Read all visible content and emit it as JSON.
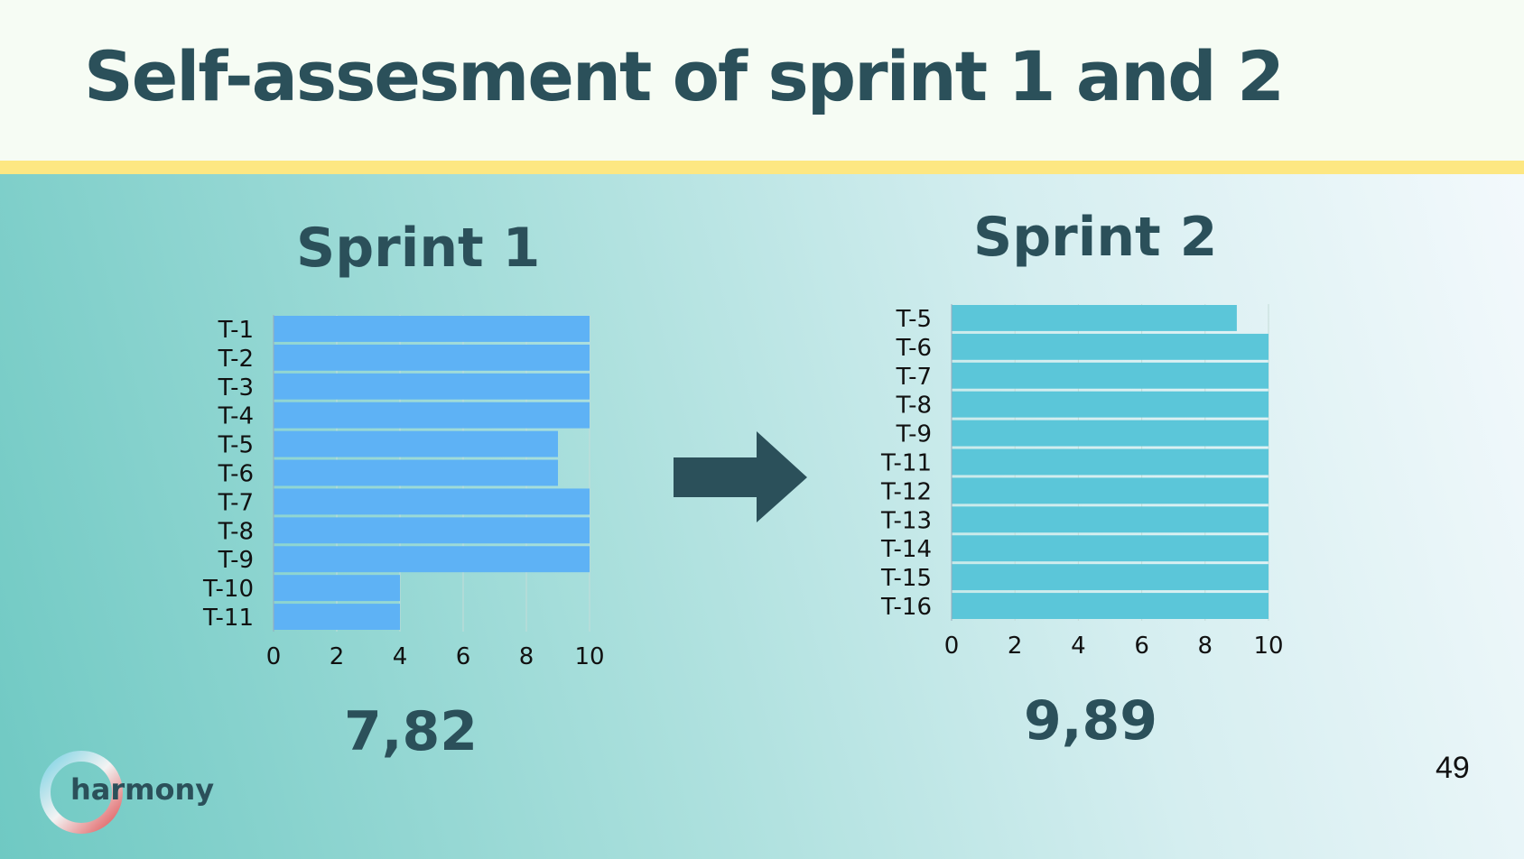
{
  "slide": {
    "title": "Self-assesment of sprint 1 and 2",
    "page_number": "49",
    "logo_text": "harmony",
    "arrow_icon": "right-arrow-icon",
    "colors": {
      "title": "#2b505a",
      "stripe": "#fde782",
      "sprint1_bars": "#5eb2f5",
      "sprint2_bars": "#5bc6d9"
    }
  },
  "chart_data": [
    {
      "type": "bar",
      "orientation": "horizontal",
      "title": "Sprint 1",
      "categories": [
        "T-1",
        "T-2",
        "T-3",
        "T-4",
        "T-5",
        "T-6",
        "T-7",
        "T-8",
        "T-9",
        "T-10",
        "T-11"
      ],
      "values": [
        10,
        10,
        10,
        10,
        9,
        9,
        10,
        10,
        10,
        4,
        4
      ],
      "xlim": [
        0,
        10
      ],
      "xticks": [
        "0",
        "2",
        "4",
        "6",
        "8",
        "10"
      ],
      "grid": true,
      "score": "7,82"
    },
    {
      "type": "bar",
      "orientation": "horizontal",
      "title": "Sprint 2",
      "categories": [
        "T-5",
        "T-6",
        "T-7",
        "T-8",
        "T-9",
        "T-11",
        "T-12",
        "T-13",
        "T-14",
        "T-15",
        "T-16"
      ],
      "values": [
        9,
        10,
        10,
        10,
        10,
        10,
        10,
        10,
        10,
        10,
        10
      ],
      "xlim": [
        0,
        10
      ],
      "xticks": [
        "0",
        "2",
        "4",
        "6",
        "8",
        "10"
      ],
      "grid": true,
      "score": "9,89"
    }
  ]
}
